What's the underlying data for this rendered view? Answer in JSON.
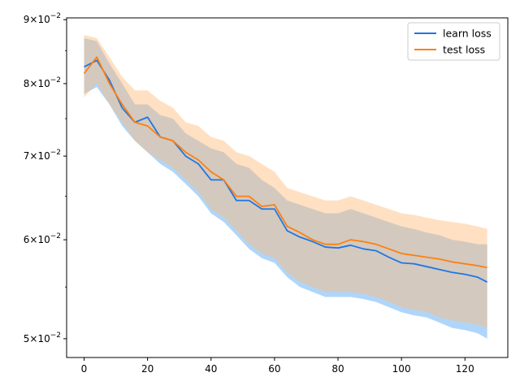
{
  "chart_data": {
    "type": "line",
    "title": "",
    "xlabel": "",
    "ylabel": "",
    "yscale": "log",
    "xlim": [
      -5.5,
      133.5
    ],
    "ylim": [
      0.0483,
      0.0903
    ],
    "x_ticks": [
      {
        "value": 0,
        "label": "0"
      },
      {
        "value": 20,
        "label": "20"
      },
      {
        "value": 40,
        "label": "40"
      },
      {
        "value": 60,
        "label": "60"
      },
      {
        "value": 80,
        "label": "80"
      },
      {
        "value": 100,
        "label": "100"
      },
      {
        "value": 120,
        "label": "120"
      }
    ],
    "y_ticks": [
      {
        "value": 0.05,
        "base": "5",
        "mult": "×10",
        "exp": "−2"
      },
      {
        "value": 0.06,
        "base": "6",
        "mult": "×10",
        "exp": "−2"
      },
      {
        "value": 0.07,
        "base": "7",
        "mult": "×10",
        "exp": "−2"
      },
      {
        "value": 0.08,
        "base": "8",
        "mult": "×10",
        "exp": "−2"
      },
      {
        "value": 0.09,
        "base": "9",
        "mult": "×10",
        "exp": "−2"
      }
    ],
    "y_minor_ticks": [
      0.055,
      0.065,
      0.075,
      0.085
    ],
    "legend_position": "top-right",
    "grid": false,
    "series": [
      {
        "name": "learn loss",
        "color": "#1f77e4",
        "band_color": "#4da3f5",
        "x": [
          0,
          4,
          8,
          12,
          16,
          20,
          24,
          28,
          32,
          36,
          40,
          44,
          48,
          52,
          56,
          60,
          64,
          68,
          72,
          76,
          80,
          84,
          88,
          92,
          96,
          100,
          104,
          108,
          112,
          116,
          120,
          124,
          127
        ],
        "y": [
          0.0825,
          0.0835,
          0.0805,
          0.0765,
          0.0745,
          0.0752,
          0.0725,
          0.072,
          0.07,
          0.069,
          0.067,
          0.067,
          0.0645,
          0.0645,
          0.0635,
          0.0635,
          0.061,
          0.0603,
          0.0598,
          0.0592,
          0.0591,
          0.0594,
          0.059,
          0.0588,
          0.0581,
          0.0575,
          0.0574,
          0.0571,
          0.0568,
          0.0565,
          0.0563,
          0.056,
          0.0555
        ],
        "band_upper": [
          0.087,
          0.0865,
          0.083,
          0.08,
          0.077,
          0.077,
          0.0755,
          0.075,
          0.073,
          0.072,
          0.071,
          0.0705,
          0.069,
          0.0685,
          0.067,
          0.066,
          0.0645,
          0.064,
          0.0635,
          0.063,
          0.063,
          0.0635,
          0.063,
          0.0625,
          0.062,
          0.0615,
          0.0612,
          0.0608,
          0.0605,
          0.06,
          0.0598,
          0.0595,
          0.0595
        ],
        "band_lower": [
          0.0785,
          0.0795,
          0.077,
          0.074,
          0.072,
          0.0705,
          0.069,
          0.068,
          0.0665,
          0.065,
          0.063,
          0.062,
          0.0605,
          0.059,
          0.058,
          0.0575,
          0.056,
          0.055,
          0.0545,
          0.054,
          0.054,
          0.054,
          0.0538,
          0.0535,
          0.053,
          0.0525,
          0.0522,
          0.052,
          0.0515,
          0.051,
          0.0508,
          0.0505,
          0.05
        ]
      },
      {
        "name": "test loss",
        "color": "#ff7f0e",
        "band_color": "#ffbb78",
        "x": [
          0,
          4,
          8,
          12,
          16,
          20,
          24,
          28,
          32,
          36,
          40,
          44,
          48,
          52,
          56,
          60,
          64,
          68,
          72,
          76,
          80,
          84,
          88,
          92,
          96,
          100,
          104,
          108,
          112,
          116,
          120,
          124,
          127
        ],
        "y": [
          0.0815,
          0.084,
          0.08,
          0.077,
          0.0745,
          0.074,
          0.0725,
          0.072,
          0.0705,
          0.0695,
          0.068,
          0.067,
          0.065,
          0.065,
          0.0638,
          0.064,
          0.0615,
          0.0608,
          0.06,
          0.0595,
          0.0595,
          0.06,
          0.0598,
          0.0595,
          0.059,
          0.0585,
          0.0583,
          0.0581,
          0.0579,
          0.0576,
          0.0574,
          0.0572,
          0.057
        ],
        "band_upper": [
          0.0875,
          0.087,
          0.084,
          0.081,
          0.079,
          0.079,
          0.0775,
          0.0765,
          0.0745,
          0.074,
          0.0725,
          0.072,
          0.0705,
          0.07,
          0.069,
          0.068,
          0.066,
          0.0655,
          0.065,
          0.0645,
          0.0645,
          0.065,
          0.0645,
          0.064,
          0.0635,
          0.063,
          0.0628,
          0.0625,
          0.0622,
          0.062,
          0.0618,
          0.0615,
          0.0612
        ],
        "band_lower": [
          0.078,
          0.08,
          0.077,
          0.0745,
          0.072,
          0.0705,
          0.0695,
          0.0685,
          0.067,
          0.0655,
          0.0635,
          0.0625,
          0.061,
          0.0595,
          0.0585,
          0.058,
          0.0565,
          0.0555,
          0.055,
          0.0545,
          0.0545,
          0.0545,
          0.0543,
          0.054,
          0.0535,
          0.053,
          0.0527,
          0.0525,
          0.052,
          0.0517,
          0.0515,
          0.0513,
          0.051
        ]
      }
    ]
  }
}
